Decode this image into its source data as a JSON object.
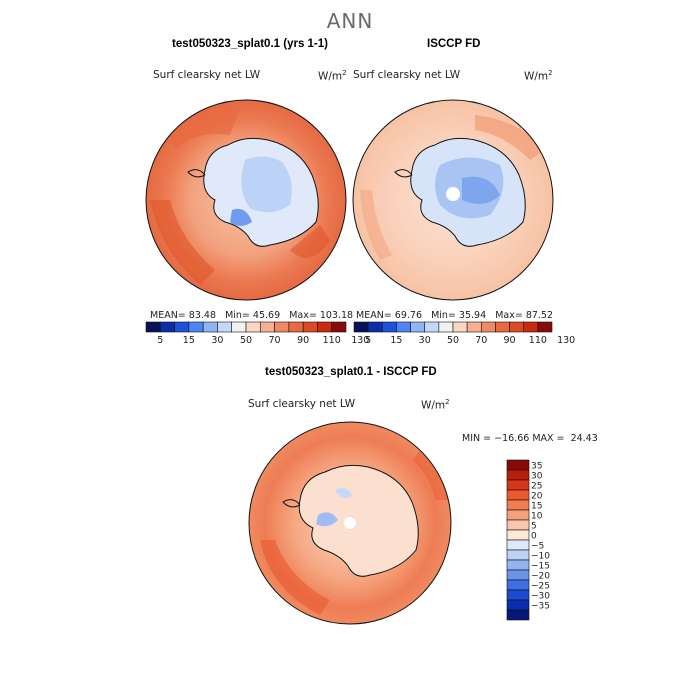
{
  "figure_title": "ANN",
  "chart_data": [
    {
      "type": "heatmap",
      "title": "test050323_splat0.1 (yrs 1-1)",
      "variable": "Surf clearsky net LW",
      "units": "W/m2",
      "units_base": "W/m",
      "units_exp": "2",
      "projection": "south-polar-stereographic",
      "stats": {
        "mean_label": "MEAN=",
        "mean": "83.48",
        "min_label": "Min=",
        "min": "45.69",
        "max_label": "Max=",
        "max": "103.18"
      },
      "colorbar": {
        "ticks": [
          "5",
          "15",
          "30",
          "50",
          "70",
          "90",
          "110",
          "130"
        ],
        "colors": [
          "#08105a",
          "#0b2ea8",
          "#1a52d8",
          "#4d86f0",
          "#90b4f5",
          "#c5d8f7",
          "#f2f2f2",
          "#fbd6c2",
          "#f6b091",
          "#ef8a64",
          "#e86a40",
          "#dd4a22",
          "#c92a10",
          "#8a0a0a"
        ]
      }
    },
    {
      "type": "heatmap",
      "title": "ISCCP FD",
      "variable": "Surf clearsky net LW",
      "units": "W/m2",
      "units_base": "W/m",
      "units_exp": "2",
      "projection": "south-polar-stereographic",
      "stats": {
        "mean_label": "MEAN=",
        "mean": "69.76",
        "min_label": "Min=",
        "min": "35.94",
        "max_label": "Max=",
        "max": "87.52"
      },
      "colorbar": {
        "ticks": [
          "5",
          "15",
          "30",
          "50",
          "70",
          "90",
          "110",
          "130"
        ],
        "colors": [
          "#08105a",
          "#0b2ea8",
          "#1a52d8",
          "#4d86f0",
          "#90b4f5",
          "#c5d8f7",
          "#f2f2f2",
          "#fbd6c2",
          "#f6b091",
          "#ef8a64",
          "#e86a40",
          "#dd4a22",
          "#c92a10",
          "#8a0a0a"
        ]
      }
    },
    {
      "type": "heatmap",
      "title": "test050323_splat0.1 - ISCCP FD",
      "variable": "Surf clearsky net LW",
      "units": "W/m2",
      "units_base": "W/m",
      "units_exp": "2",
      "projection": "south-polar-stereographic",
      "stats": {
        "min_label": "MIN =",
        "min": "−16.66",
        "max_label": "MAX =",
        "max": "24.43"
      },
      "colorbar": {
        "ticks": [
          "35",
          "30",
          "25",
          "20",
          "15",
          "10",
          "5",
          "0",
          "−5",
          "−10",
          "−15",
          "−20",
          "−25",
          "−30",
          "−35"
        ],
        "colors": [
          "#8a0a0a",
          "#b81e0e",
          "#d8361a",
          "#ea5a2e",
          "#f07e52",
          "#f5a27c",
          "#f9c7aa",
          "#fde8da",
          "#dde8fb",
          "#bdd2f7",
          "#93b3f2",
          "#6a93ea",
          "#3e6fe0",
          "#1b4ad0",
          "#0a2cae",
          "#06197a"
        ]
      }
    }
  ]
}
